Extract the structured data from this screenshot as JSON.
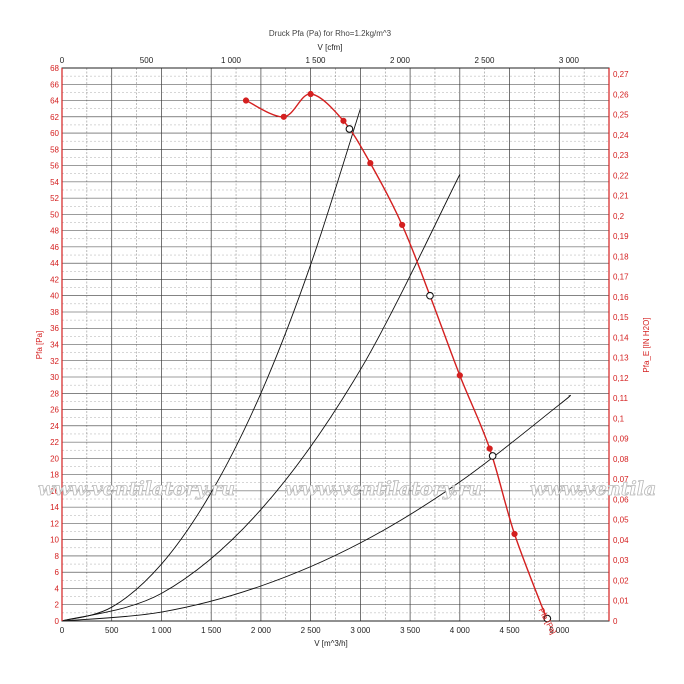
{
  "chart_data": {
    "type": "line",
    "title": "Druck Pfa (Pa) for Rho=1.2kg/m^3",
    "x_bottom_label": "V [m^3/h]",
    "x_top_label": "V [cfm]",
    "y_left_label": "Pfa [Pa]",
    "y_right_label": "Pfa_E [IN H2O]",
    "x_range": [
      0,
      5500
    ],
    "y_range": [
      0,
      68
    ],
    "x_top_range": [
      0,
      3237
    ],
    "y_right_range": [
      0,
      0.273
    ],
    "x_ticks": [
      "0",
      "500",
      "1 000",
      "1 500",
      "2 000",
      "2 500",
      "3 000",
      "3 500",
      "4 000",
      "4 500",
      "5 000"
    ],
    "x_tick_values": [
      0,
      500,
      1000,
      1500,
      2000,
      2500,
      3000,
      3500,
      4000,
      4500,
      5000
    ],
    "x_top_ticks": [
      "0",
      "500",
      "1 000",
      "1 500",
      "2 000",
      "2 500",
      "3 000"
    ],
    "x_top_tick_values": [
      0,
      500,
      1000,
      1500,
      2000,
      2500,
      3000
    ],
    "y_ticks": [
      "0",
      "2",
      "4",
      "6",
      "8",
      "10",
      "12",
      "14",
      "16",
      "18",
      "20",
      "22",
      "24",
      "26",
      "28",
      "30",
      "32",
      "34",
      "36",
      "38",
      "40",
      "42",
      "44",
      "46",
      "48",
      "50",
      "52",
      "54",
      "56",
      "58",
      "60",
      "62",
      "64",
      "66",
      "68"
    ],
    "y_tick_values": [
      0,
      2,
      4,
      6,
      8,
      10,
      12,
      14,
      16,
      18,
      20,
      22,
      24,
      26,
      28,
      30,
      32,
      34,
      36,
      38,
      40,
      42,
      44,
      46,
      48,
      50,
      52,
      54,
      56,
      58,
      60,
      62,
      64,
      66,
      68
    ],
    "y_right_ticks": [
      "0",
      "0,01",
      "0,02",
      "0,03",
      "0,04",
      "0,05",
      "0,06",
      "0,07",
      "0,08",
      "0,09",
      "0,1",
      "0,11",
      "0,12",
      "0,13",
      "0,14",
      "0,15",
      "0,16",
      "0,17",
      "0,18",
      "0,19",
      "0,2",
      "0,21",
      "0,22",
      "0,23",
      "0,24",
      "0,25",
      "0,26",
      "0,27"
    ],
    "y_right_tick_values": [
      0,
      0.01,
      0.02,
      0.03,
      0.04,
      0.05,
      0.06,
      0.07,
      0.08,
      0.09,
      0.1,
      0.11,
      0.12,
      0.13,
      0.14,
      0.15,
      0.16,
      0.17,
      0.18,
      0.19,
      0.2,
      0.21,
      0.22,
      0.23,
      0.24,
      0.25,
      0.26,
      0.27
    ],
    "grid": true,
    "series": [
      {
        "name": "Pfa [Pa]",
        "color": "#d42020",
        "x": [
          1850,
          2230,
          2500,
          2830,
          3100,
          3420,
          3700,
          4000,
          4300,
          4550,
          4870
        ],
        "y": [
          64.0,
          62.0,
          64.8,
          61.5,
          56.3,
          48.7,
          40.0,
          30.2,
          21.2,
          10.7,
          0.4
        ]
      }
    ],
    "operating_points": {
      "x": [
        2890,
        3700,
        4330,
        4880
      ],
      "y": [
        60.5,
        40.0,
        20.3,
        0.3
      ]
    },
    "system_curves": [
      {
        "x": [
          0,
          500,
          1000,
          1500,
          2000,
          2500,
          3000
        ],
        "y": [
          0,
          1.7,
          7.0,
          15.8,
          28.0,
          43.8,
          63.0
        ]
      },
      {
        "x": [
          0,
          1000,
          2000,
          3000,
          4000,
          4800
        ],
        "y": [
          0,
          3.4,
          13.7,
          30.9,
          54.9,
          79.1
        ]
      },
      {
        "x": [
          0,
          1000,
          2000,
          3000,
          4000,
          5000,
          5100
        ],
        "y": [
          0,
          1.1,
          4.3,
          9.6,
          17.1,
          26.6,
          27.7
        ]
      }
    ]
  },
  "watermark": {
    "text": "www.ventilatory.ru",
    "line_color": "#d42020",
    "grid_color": "#222222"
  }
}
